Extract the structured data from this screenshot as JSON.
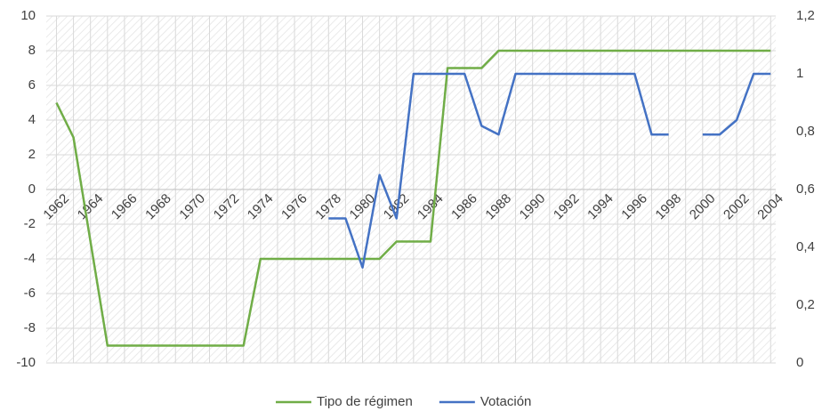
{
  "chart_data": {
    "type": "line",
    "x": [
      1962,
      1963,
      1964,
      1965,
      1966,
      1967,
      1968,
      1969,
      1970,
      1971,
      1972,
      1973,
      1974,
      1975,
      1976,
      1977,
      1978,
      1979,
      1980,
      1981,
      1982,
      1983,
      1984,
      1985,
      1986,
      1987,
      1988,
      1989,
      1990,
      1991,
      1992,
      1993,
      1994,
      1995,
      1996,
      1997,
      1998,
      1999,
      2000,
      2001,
      2002,
      2003,
      2004
    ],
    "xlim": [
      1961.4,
      2004.3
    ],
    "xticks": [
      1962,
      1964,
      1966,
      1968,
      1970,
      1972,
      1974,
      1976,
      1978,
      1980,
      1982,
      1984,
      1986,
      1988,
      1990,
      1992,
      1994,
      1996,
      1998,
      2000,
      2002,
      2004
    ],
    "ylim": [
      -10,
      10
    ],
    "yticks": [
      -10,
      -8,
      -6,
      -4,
      -2,
      0,
      2,
      4,
      6,
      8,
      10
    ],
    "y2lim": [
      0,
      1.2
    ],
    "y2ticks": [
      {
        "value": 0,
        "label": "0"
      },
      {
        "value": 0.2,
        "label": "0,2"
      },
      {
        "value": 0.4,
        "label": "0,4"
      },
      {
        "value": 0.6,
        "label": "0,6"
      },
      {
        "value": 0.8,
        "label": "0,8"
      },
      {
        "value": 1,
        "label": "1"
      },
      {
        "value": 1.2,
        "label": "1,2"
      }
    ],
    "grid": true,
    "legend": "bottom",
    "series": [
      {
        "name": "Tipo de régimen",
        "color": "#70ad47",
        "values": [
          5,
          3,
          -3,
          -9,
          -9,
          -9,
          -9,
          -9,
          -9,
          -9,
          -9,
          -9,
          -4,
          -4,
          -4,
          -4,
          -4,
          -4,
          -4,
          -4,
          -3,
          -3,
          -3,
          7,
          7,
          7,
          8,
          8,
          8,
          8,
          8,
          8,
          8,
          8,
          8,
          8,
          8,
          8,
          8,
          8,
          8,
          8,
          8
        ]
      },
      {
        "name": "Votación",
        "color": "#4472c4",
        "axis": "y2",
        "values": [
          null,
          null,
          null,
          null,
          null,
          null,
          null,
          null,
          null,
          null,
          null,
          null,
          null,
          null,
          null,
          null,
          0.5,
          0.5,
          0.33,
          0.65,
          0.5,
          1,
          1,
          1,
          1,
          0.82,
          0.79,
          1,
          1,
          1,
          1,
          1,
          1,
          1,
          1,
          0.79,
          0.79,
          null,
          0.79,
          0.79,
          0.84,
          1,
          1
        ]
      }
    ]
  }
}
